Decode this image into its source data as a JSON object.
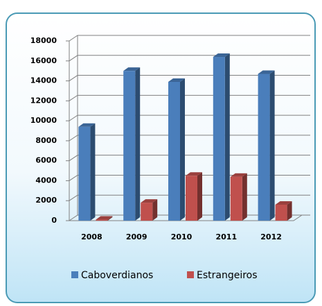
{
  "chart_data": {
    "type": "bar3d",
    "categories": [
      "2008",
      "2009",
      "2010",
      "2011",
      "2012"
    ],
    "series": [
      {
        "name": "Caboverdianos",
        "color": "#4a7ebb",
        "values": [
          9400,
          15000,
          13900,
          16400,
          14700
        ]
      },
      {
        "name": "Estrangeiros",
        "color": "#c0504d",
        "values": [
          100,
          1800,
          4500,
          4400,
          1600
        ]
      }
    ],
    "ylim": [
      0,
      18000
    ],
    "yticks": [
      0,
      2000,
      4000,
      6000,
      8000,
      10000,
      12000,
      14000,
      16000,
      18000
    ],
    "grid": true,
    "legend": "bottom"
  }
}
